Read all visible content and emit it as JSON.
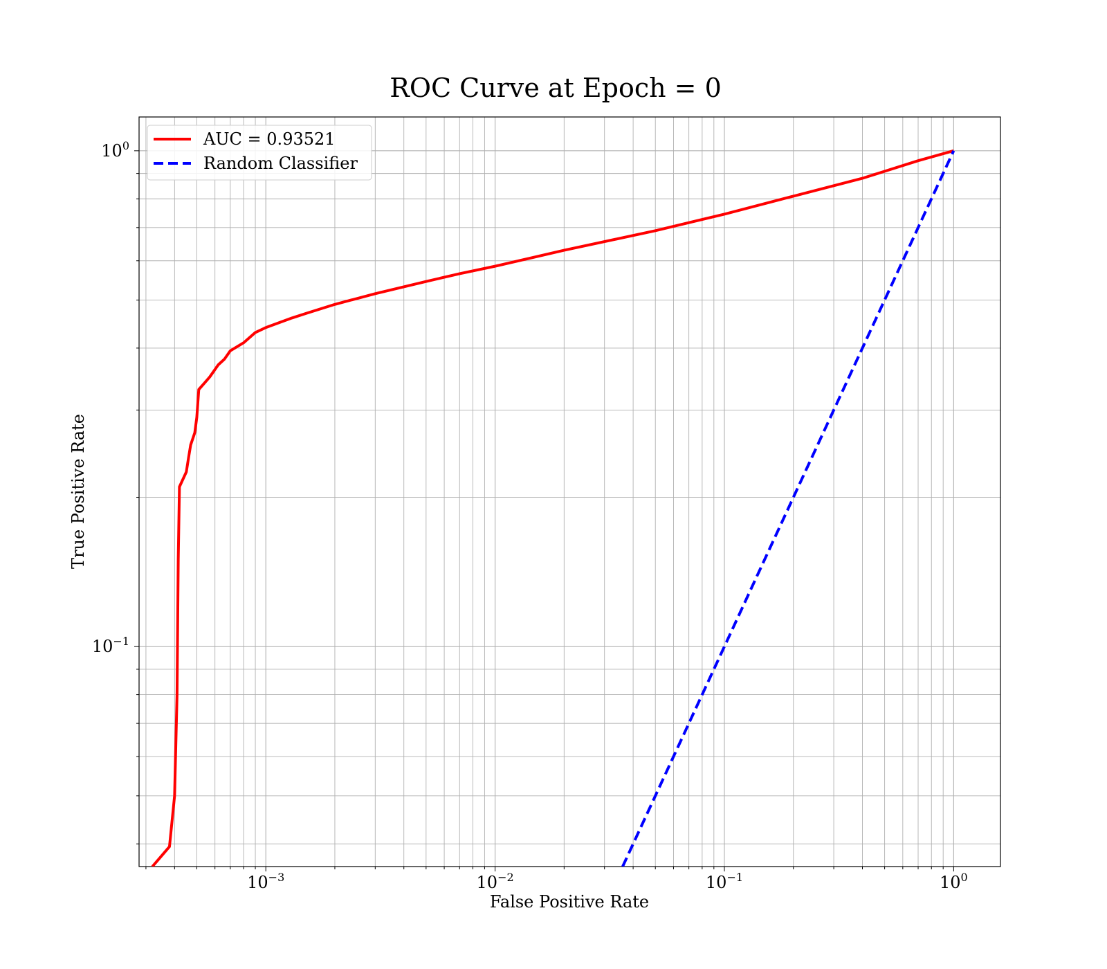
{
  "chart_data": {
    "type": "line",
    "title": "ROC Curve at Epoch = 0",
    "xlabel": "False Positive Rate",
    "ylabel": "True Positive Rate",
    "xscale": "log",
    "yscale": "log",
    "xlim": [
      0.00028,
      1.6
    ],
    "ylim": [
      0.036,
      1.17
    ],
    "grid": "on (major and minor)",
    "legend_position": "top-left",
    "x_ticks": [
      {
        "base": "10",
        "exp": "−3",
        "value": 0.001
      },
      {
        "base": "10",
        "exp": "−2",
        "value": 0.01
      },
      {
        "base": "10",
        "exp": "−1",
        "value": 0.1
      },
      {
        "base": "10",
        "exp": "0",
        "value": 1
      }
    ],
    "y_ticks": [
      {
        "base": "10",
        "exp": "−1",
        "value": 0.1
      },
      {
        "base": "10",
        "exp": "0",
        "value": 1
      }
    ],
    "series": [
      {
        "name": "AUC = 0.93521",
        "color": "#ff0000",
        "style": "solid",
        "points": [
          [
            0.00032,
            0.036
          ],
          [
            0.00038,
            0.0395
          ],
          [
            0.0004,
            0.05
          ],
          [
            0.00041,
            0.08
          ],
          [
            0.000415,
            0.15
          ],
          [
            0.00042,
            0.21
          ],
          [
            0.00045,
            0.225
          ],
          [
            0.00046,
            0.24
          ],
          [
            0.00047,
            0.255
          ],
          [
            0.00049,
            0.27
          ],
          [
            0.0005,
            0.29
          ],
          [
            0.00051,
            0.33
          ],
          [
            0.00054,
            0.34
          ],
          [
            0.00057,
            0.35
          ],
          [
            0.00062,
            0.37
          ],
          [
            0.00066,
            0.38
          ],
          [
            0.0007,
            0.395
          ],
          [
            0.0008,
            0.41
          ],
          [
            0.0009,
            0.43
          ],
          [
            0.001,
            0.44
          ],
          [
            0.0013,
            0.46
          ],
          [
            0.0015,
            0.47
          ],
          [
            0.002,
            0.49
          ],
          [
            0.003,
            0.515
          ],
          [
            0.005,
            0.545
          ],
          [
            0.007,
            0.565
          ],
          [
            0.01,
            0.585
          ],
          [
            0.02,
            0.63
          ],
          [
            0.05,
            0.69
          ],
          [
            0.1,
            0.745
          ],
          [
            0.2,
            0.81
          ],
          [
            0.4,
            0.88
          ],
          [
            0.7,
            0.955
          ],
          [
            1.0,
            1.0
          ]
        ]
      },
      {
        "name": "Random Classifier",
        "color": "#0000ff",
        "style": "dashed",
        "points": [
          [
            0.036,
            0.036
          ],
          [
            1.0,
            1.0
          ]
        ]
      }
    ]
  }
}
